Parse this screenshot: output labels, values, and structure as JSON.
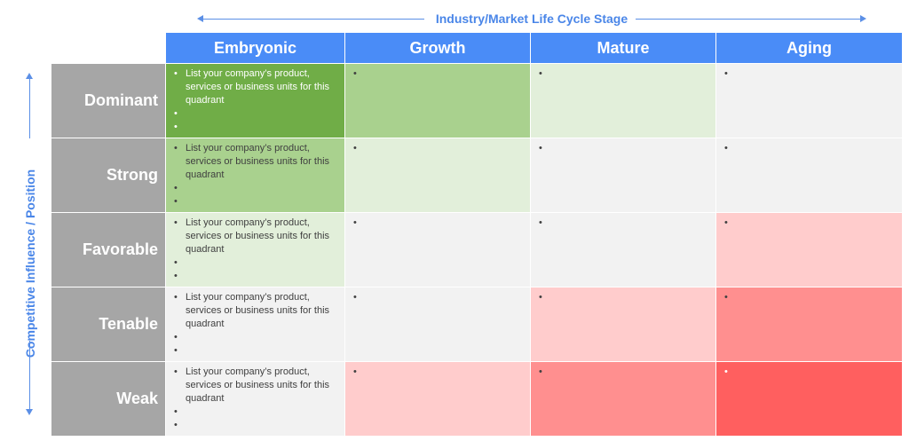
{
  "top_axis": {
    "label": "Industry/Market Life Cycle Stage"
  },
  "left_axis": {
    "label": "Competitive Influence / Position"
  },
  "columns": [
    "Embryonic",
    "Growth",
    "Mature",
    "Aging"
  ],
  "rows": [
    {
      "label": "Dominant",
      "cells": [
        {
          "bullets": [
            "List your company’s product, services or business units for this quadrant",
            "",
            ""
          ],
          "color": "#70ad47",
          "text_color": "#ffffff"
        },
        {
          "bullets": [
            ""
          ],
          "color": "#a9d18e"
        },
        {
          "bullets": [
            ""
          ],
          "color": "#e2efda"
        },
        {
          "bullets": [
            ""
          ],
          "color": "#f2f2f2"
        }
      ]
    },
    {
      "label": "Strong",
      "cells": [
        {
          "bullets": [
            "List your company’s product, services or business units for this quadrant",
            "",
            ""
          ],
          "color": "#a9d18e"
        },
        {
          "bullets": [
            ""
          ],
          "color": "#e2efda"
        },
        {
          "bullets": [
            ""
          ],
          "color": "#f2f2f2"
        },
        {
          "bullets": [
            ""
          ],
          "color": "#f2f2f2"
        }
      ]
    },
    {
      "label": "Favorable",
      "cells": [
        {
          "bullets": [
            "List your company’s product, services or business units for this quadrant",
            "",
            ""
          ],
          "color": "#e2efda"
        },
        {
          "bullets": [
            ""
          ],
          "color": "#f2f2f2"
        },
        {
          "bullets": [
            ""
          ],
          "color": "#f2f2f2"
        },
        {
          "bullets": [
            ""
          ],
          "color": "#ffcccc"
        }
      ]
    },
    {
      "label": "Tenable",
      "cells": [
        {
          "bullets": [
            "List your company’s product, services or business units for this quadrant",
            "",
            ""
          ],
          "color": "#f2f2f2"
        },
        {
          "bullets": [
            ""
          ],
          "color": "#f2f2f2"
        },
        {
          "bullets": [
            ""
          ],
          "color": "#ffcccc"
        },
        {
          "bullets": [
            ""
          ],
          "color": "#ff8f8f"
        }
      ]
    },
    {
      "label": "Weak",
      "cells": [
        {
          "bullets": [
            "List your company’s product, services or business units for this quadrant",
            "",
            ""
          ],
          "color": "#f2f2f2"
        },
        {
          "bullets": [
            ""
          ],
          "color": "#ffcccc"
        },
        {
          "bullets": [
            ""
          ],
          "color": "#ff8f8f"
        },
        {
          "bullets": [
            ""
          ],
          "color": "#ff5f5f",
          "text_color": "#ffffff"
        }
      ]
    }
  ],
  "colors": {
    "header_bg": "#4a8cf7",
    "axis_blue": "#4a86e8",
    "row_label_bg": "#a6a6a6"
  }
}
